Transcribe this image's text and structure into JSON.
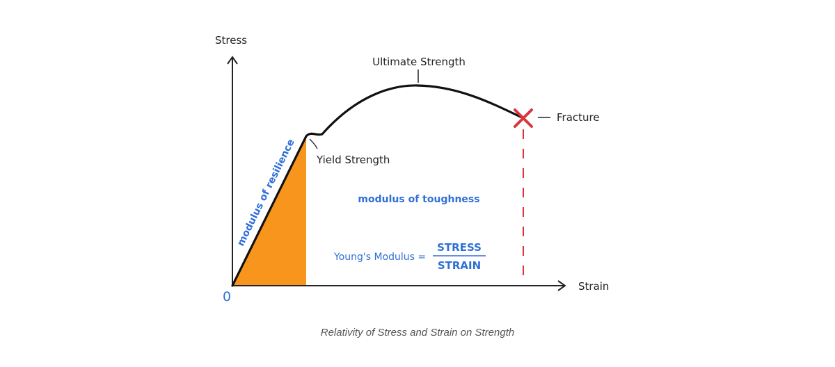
{
  "diagram": {
    "y_axis_label": "Stress",
    "x_axis_label": "Strain",
    "origin_label": "0",
    "ultimate_label": "Ultimate Strength",
    "yield_label": "Yield Strength",
    "fracture_label": "Fracture",
    "resilience_label": "modulus of resilience",
    "toughness_label": "modulus of toughness",
    "youngs_label": "Young's Modulus =",
    "youngs_numerator": "STRESS",
    "youngs_denominator": "STRAIN"
  },
  "colors": {
    "curve": "#111111",
    "resilience_fill": "#f7951d",
    "fracture_marker": "#d9363e",
    "annotation_blue": "#2f6fd6",
    "caption": "#555555"
  },
  "caption": "Relativity of Stress and Strain on Strength"
}
